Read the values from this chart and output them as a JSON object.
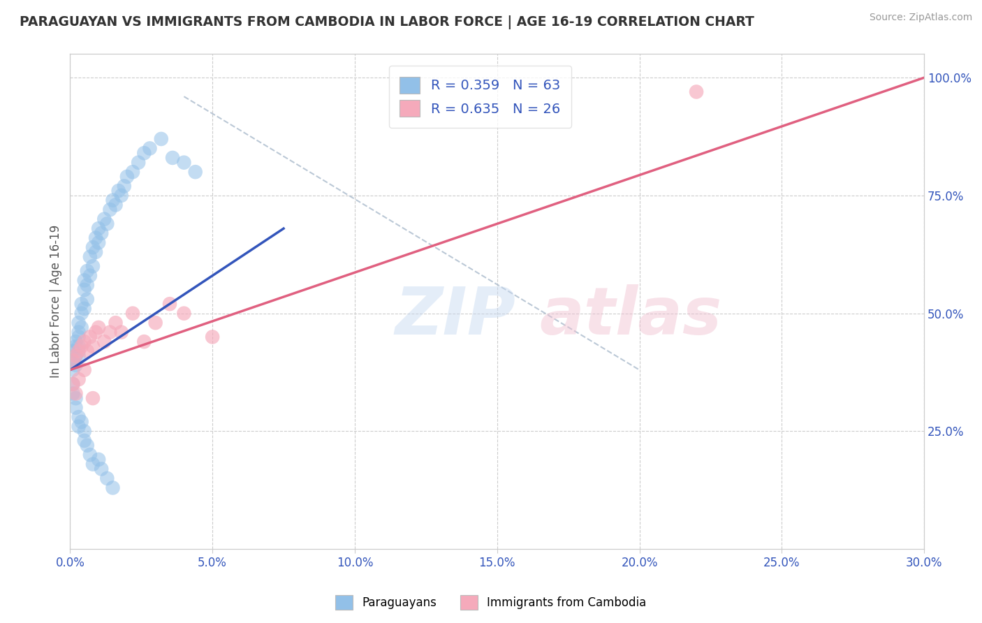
{
  "title": "PARAGUAYAN VS IMMIGRANTS FROM CAMBODIA IN LABOR FORCE | AGE 16-19 CORRELATION CHART",
  "source": "Source: ZipAtlas.com",
  "ylabel": "In Labor Force | Age 16-19",
  "xmin": 0.0,
  "xmax": 0.3,
  "ymin": 0.0,
  "ymax": 1.05,
  "xtick_values": [
    0.0,
    0.05,
    0.1,
    0.15,
    0.2,
    0.25,
    0.3
  ],
  "xtick_labels": [
    "0.0%",
    "5.0%",
    "10.0%",
    "15.0%",
    "20.0%",
    "25.0%",
    "30.0%"
  ],
  "ytick_values": [
    0.25,
    0.5,
    0.75,
    1.0
  ],
  "ytick_labels": [
    "25.0%",
    "50.0%",
    "75.0%",
    "100.0%"
  ],
  "blue_color": "#92C0E8",
  "pink_color": "#F5AABB",
  "blue_line_color": "#3355BB",
  "pink_line_color": "#E06080",
  "dashed_line_color": "#AABBCC",
  "legend_r_blue": "0.359",
  "legend_n_blue": "63",
  "legend_r_pink": "0.635",
  "legend_n_pink": "26",
  "legend_text_color": "#3355BB",
  "paraguayans_label": "Paraguayans",
  "cambodia_label": "Immigrants from Cambodia",
  "blue_x": [
    0.001,
    0.001,
    0.001,
    0.002,
    0.002,
    0.002,
    0.002,
    0.003,
    0.003,
    0.003,
    0.003,
    0.003,
    0.004,
    0.004,
    0.004,
    0.005,
    0.005,
    0.005,
    0.006,
    0.006,
    0.006,
    0.007,
    0.007,
    0.008,
    0.008,
    0.009,
    0.009,
    0.01,
    0.01,
    0.011,
    0.012,
    0.013,
    0.014,
    0.015,
    0.016,
    0.017,
    0.018,
    0.019,
    0.02,
    0.022,
    0.024,
    0.026,
    0.028,
    0.032,
    0.036,
    0.04,
    0.044,
    0.001,
    0.001,
    0.002,
    0.002,
    0.003,
    0.003,
    0.004,
    0.005,
    0.005,
    0.006,
    0.007,
    0.008,
    0.01,
    0.011,
    0.013,
    0.015
  ],
  "blue_y": [
    0.4,
    0.42,
    0.38,
    0.43,
    0.41,
    0.39,
    0.44,
    0.45,
    0.43,
    0.41,
    0.46,
    0.48,
    0.47,
    0.5,
    0.52,
    0.51,
    0.55,
    0.57,
    0.53,
    0.56,
    0.59,
    0.58,
    0.62,
    0.6,
    0.64,
    0.63,
    0.66,
    0.65,
    0.68,
    0.67,
    0.7,
    0.69,
    0.72,
    0.74,
    0.73,
    0.76,
    0.75,
    0.77,
    0.79,
    0.8,
    0.82,
    0.84,
    0.85,
    0.87,
    0.83,
    0.82,
    0.8,
    0.35,
    0.33,
    0.32,
    0.3,
    0.28,
    0.26,
    0.27,
    0.25,
    0.23,
    0.22,
    0.2,
    0.18,
    0.19,
    0.17,
    0.15,
    0.13
  ],
  "pink_x": [
    0.001,
    0.002,
    0.003,
    0.004,
    0.005,
    0.006,
    0.007,
    0.008,
    0.009,
    0.01,
    0.012,
    0.014,
    0.016,
    0.018,
    0.022,
    0.026,
    0.03,
    0.035,
    0.04,
    0.05,
    0.001,
    0.002,
    0.003,
    0.005,
    0.008,
    0.22
  ],
  "pink_y": [
    0.4,
    0.41,
    0.42,
    0.43,
    0.44,
    0.42,
    0.45,
    0.43,
    0.46,
    0.47,
    0.44,
    0.46,
    0.48,
    0.46,
    0.5,
    0.44,
    0.48,
    0.52,
    0.5,
    0.45,
    0.35,
    0.33,
    0.36,
    0.38,
    0.32,
    0.97
  ],
  "blue_line_x": [
    0.0,
    0.075
  ],
  "blue_line_y": [
    0.38,
    0.68
  ],
  "pink_line_x": [
    0.0,
    0.3
  ],
  "pink_line_y": [
    0.38,
    1.0
  ],
  "dash_line_x": [
    0.04,
    0.2
  ],
  "dash_line_y": [
    0.96,
    0.38
  ]
}
